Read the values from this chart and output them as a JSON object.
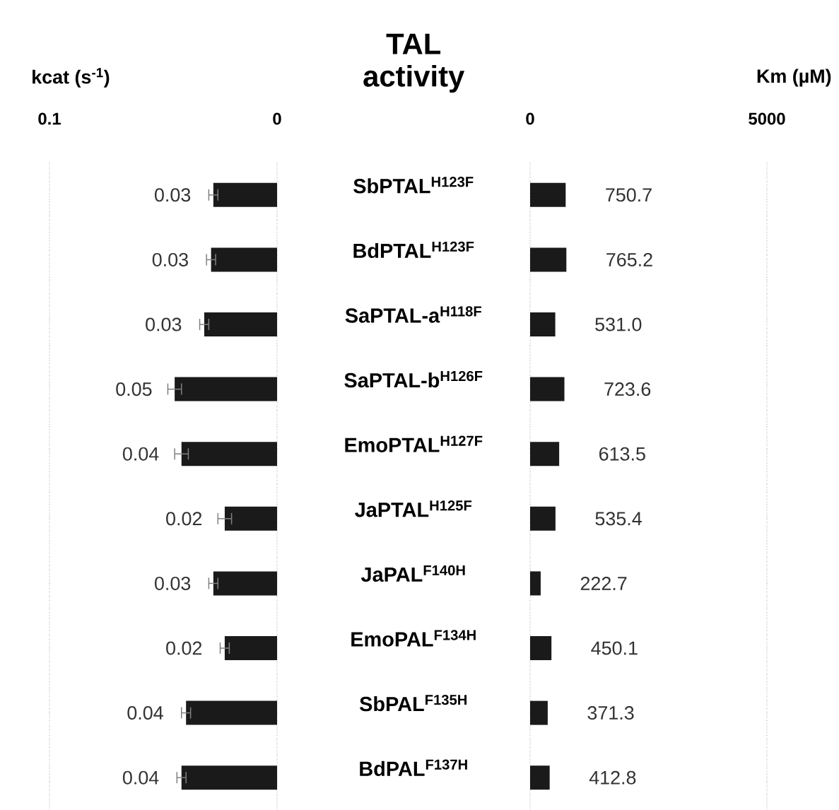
{
  "chart_data": [
    {
      "type": "bar",
      "orientation": "horizontal",
      "title": "TAL activity",
      "xlabel": "kcat (s$^{-1}$)",
      "categories": [
        "SbPTAL$^{H123F}$",
        "BdPTAL$^{H123F}$",
        "SaPTAL-a$^{H118F}$",
        "SaPTAL-b$^{H126F}$",
        "EmoPTAL$^{H127F}$",
        "JaPTAL$^{H125F}$",
        "JaPAL$^{F140H}$",
        "EmoPAL$^{F134H}$",
        "SbPAL$^{F135H}$",
        "BdPAL$^{F137H}$"
      ],
      "values": [
        0.028,
        0.029,
        0.032,
        0.045,
        0.042,
        0.023,
        0.028,
        0.023,
        0.04,
        0.042
      ],
      "errors": [
        0.002,
        0.002,
        0.002,
        0.003,
        0.003,
        0.003,
        0.002,
        0.002,
        0.002,
        0.002
      ],
      "value_labels": [
        "0.03",
        "0.03",
        "0.03",
        "0.05",
        "0.04",
        "0.02",
        "0.03",
        "0.02",
        "0.04",
        "0.04"
      ],
      "color": "#1a1a1a",
      "xlim": [
        0.1,
        0
      ],
      "xticks": [
        0.1,
        0
      ],
      "grid": "x"
    },
    {
      "type": "bar",
      "orientation": "horizontal",
      "xlabel": "Km (µM)",
      "categories": [
        null,
        null,
        null,
        null,
        null,
        null,
        null,
        null,
        null,
        null
      ],
      "values": [
        750.7,
        765.2,
        531.0,
        723.6,
        613.5,
        535.4,
        222.7,
        450.1,
        371.3,
        412.8
      ],
      "value_labels": [
        "750.7",
        "765.2",
        "531.0",
        "723.6",
        "613.5",
        "535.4",
        "222.7",
        "450.1",
        "371.3",
        "412.8"
      ],
      "color": "#1a1a1a",
      "xlim": [
        0,
        5000
      ],
      "xticks": [
        0,
        5000
      ],
      "grid": "x"
    }
  ]
}
